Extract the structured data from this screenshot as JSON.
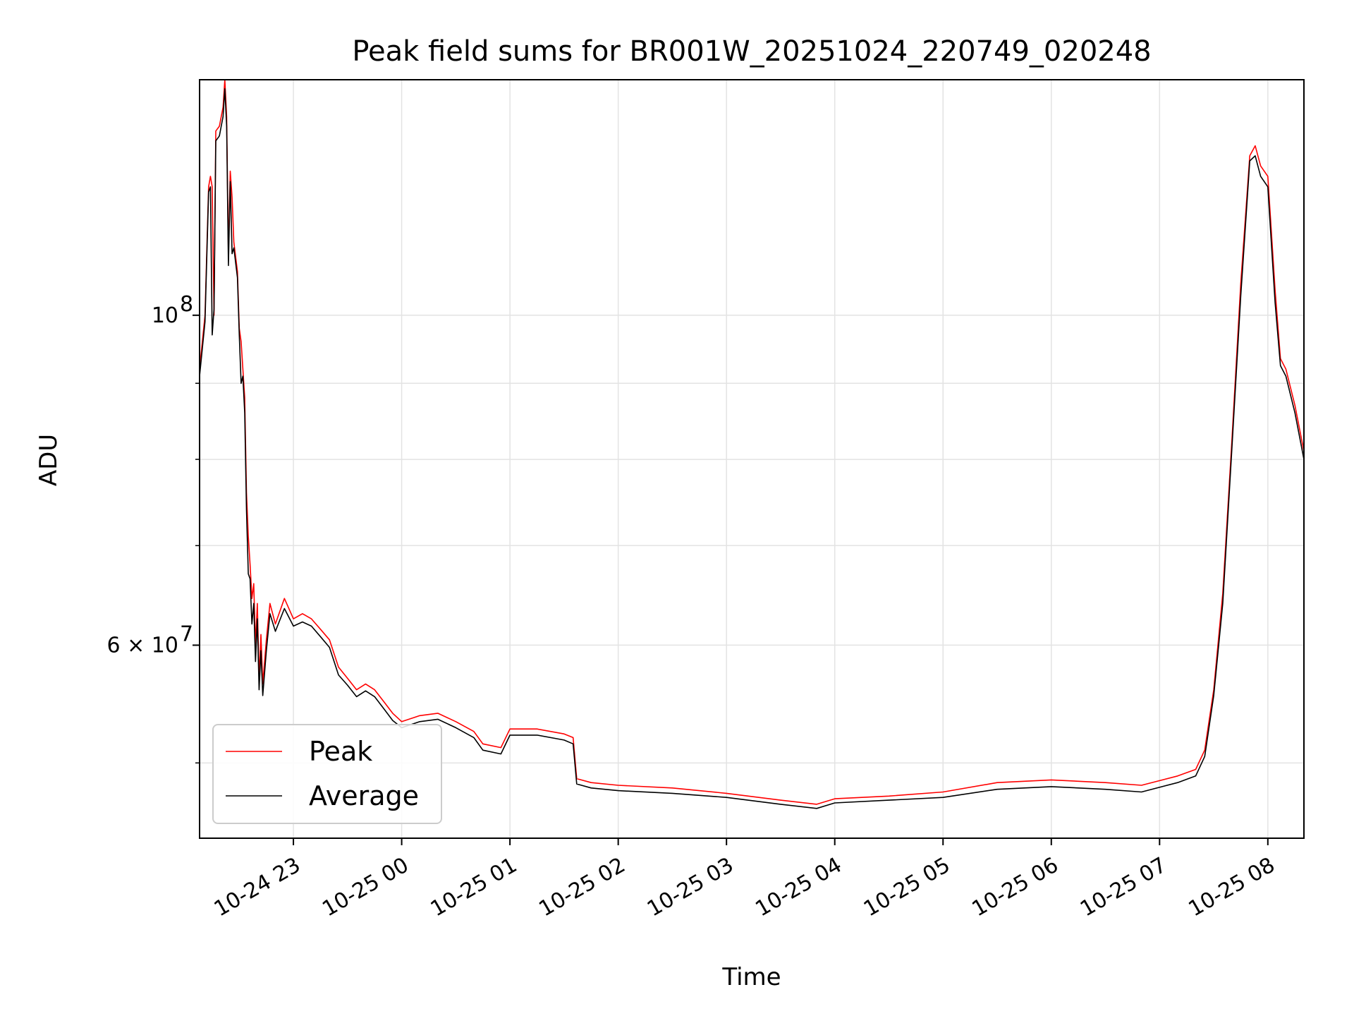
{
  "chart_data": {
    "type": "line",
    "title": "Peak field sums for BR001W_20251024_220749_020248",
    "xlabel": "Time",
    "ylabel": "ADU",
    "yscale": "log",
    "grid": true,
    "legend_position": "lower-left",
    "xlim": [
      "2025-10-24T22:08:00",
      "2025-10-25T08:20:00"
    ],
    "ylim": [
      44500000,
      144000000
    ],
    "x_ticks": [
      {
        "t": "2025-10-24T23:00:00",
        "label": "10-24 23"
      },
      {
        "t": "2025-10-25T00:00:00",
        "label": "10-25 00"
      },
      {
        "t": "2025-10-25T01:00:00",
        "label": "10-25 01"
      },
      {
        "t": "2025-10-25T02:00:00",
        "label": "10-25 02"
      },
      {
        "t": "2025-10-25T03:00:00",
        "label": "10-25 03"
      },
      {
        "t": "2025-10-25T04:00:00",
        "label": "10-25 04"
      },
      {
        "t": "2025-10-25T05:00:00",
        "label": "10-25 05"
      },
      {
        "t": "2025-10-25T06:00:00",
        "label": "10-25 06"
      },
      {
        "t": "2025-10-25T07:00:00",
        "label": "10-25 07"
      },
      {
        "t": "2025-10-25T08:00:00",
        "label": "10-25 08"
      }
    ],
    "y_major_ticks": [
      {
        "v": 100000000,
        "label_base": "10",
        "label_exp": "8"
      },
      {
        "v": 60000000,
        "label_base": "6 × 10",
        "label_exp": "7"
      }
    ],
    "y_minor_ticks": [
      50000000,
      70000000,
      80000000,
      90000000
    ],
    "series": [
      {
        "name": "Peak",
        "color": "#ff0000",
        "points": [
          [
            "2025-10-24T22:08:00",
            92000000
          ],
          [
            "2025-10-24T22:11:00",
            100000000
          ],
          [
            "2025-10-24T22:13:00",
            122000000
          ],
          [
            "2025-10-24T22:14:00",
            124000000
          ],
          [
            "2025-10-24T22:15:00",
            122000000
          ],
          [
            "2025-10-24T22:16:00",
            100000000
          ],
          [
            "2025-10-24T22:17:00",
            133000000
          ],
          [
            "2025-10-24T22:19:00",
            134000000
          ],
          [
            "2025-10-24T22:20:00",
            136000000
          ],
          [
            "2025-10-24T22:21:00",
            138000000
          ],
          [
            "2025-10-24T22:22:00",
            144000000
          ],
          [
            "2025-10-24T22:23:00",
            136000000
          ],
          [
            "2025-10-24T22:24:00",
            110000000
          ],
          [
            "2025-10-24T22:25:00",
            125000000
          ],
          [
            "2025-10-24T22:26:00",
            120000000
          ],
          [
            "2025-10-24T22:27:00",
            112000000
          ],
          [
            "2025-10-24T22:29:00",
            107000000
          ],
          [
            "2025-10-24T22:30:00",
            98000000
          ],
          [
            "2025-10-24T22:31:00",
            96000000
          ],
          [
            "2025-10-24T22:32:00",
            92000000
          ],
          [
            "2025-10-24T22:33:00",
            88000000
          ],
          [
            "2025-10-24T22:34:00",
            76000000
          ],
          [
            "2025-10-24T22:35:00",
            71000000
          ],
          [
            "2025-10-24T22:36:00",
            68000000
          ],
          [
            "2025-10-24T22:37:00",
            64500000
          ],
          [
            "2025-10-24T22:38:00",
            66000000
          ],
          [
            "2025-10-24T22:39:00",
            60000000
          ],
          [
            "2025-10-24T22:40:00",
            64000000
          ],
          [
            "2025-10-24T22:41:00",
            57000000
          ],
          [
            "2025-10-24T22:42:00",
            61000000
          ],
          [
            "2025-10-24T22:43:00",
            56500000
          ],
          [
            "2025-10-24T22:45:00",
            60500000
          ],
          [
            "2025-10-24T22:47:00",
            64000000
          ],
          [
            "2025-10-24T22:50:00",
            62000000
          ],
          [
            "2025-10-24T22:55:00",
            64500000
          ],
          [
            "2025-10-24T23:00:00",
            62500000
          ],
          [
            "2025-10-24T23:05:00",
            63000000
          ],
          [
            "2025-10-24T23:10:00",
            62500000
          ],
          [
            "2025-10-24T23:15:00",
            61500000
          ],
          [
            "2025-10-24T23:20:00",
            60500000
          ],
          [
            "2025-10-24T23:25:00",
            58000000
          ],
          [
            "2025-10-24T23:30:00",
            57000000
          ],
          [
            "2025-10-24T23:35:00",
            56000000
          ],
          [
            "2025-10-24T23:40:00",
            56500000
          ],
          [
            "2025-10-24T23:45:00",
            56000000
          ],
          [
            "2025-10-24T23:50:00",
            55000000
          ],
          [
            "2025-10-24T23:55:00",
            54000000
          ],
          [
            "2025-10-25T00:00:00",
            53300000
          ],
          [
            "2025-10-25T00:10:00",
            53800000
          ],
          [
            "2025-10-25T00:20:00",
            54000000
          ],
          [
            "2025-10-25T00:30:00",
            53300000
          ],
          [
            "2025-10-25T00:40:00",
            52500000
          ],
          [
            "2025-10-25T00:45:00",
            51500000
          ],
          [
            "2025-10-25T00:55:00",
            51200000
          ],
          [
            "2025-10-25T01:00:00",
            52700000
          ],
          [
            "2025-10-25T01:15:00",
            52700000
          ],
          [
            "2025-10-25T01:30:00",
            52300000
          ],
          [
            "2025-10-25T01:35:00",
            52000000
          ],
          [
            "2025-10-25T01:37:00",
            48800000
          ],
          [
            "2025-10-25T01:45:00",
            48500000
          ],
          [
            "2025-10-25T02:00:00",
            48300000
          ],
          [
            "2025-10-25T02:30:00",
            48100000
          ],
          [
            "2025-10-25T03:00:00",
            47700000
          ],
          [
            "2025-10-25T03:30:00",
            47200000
          ],
          [
            "2025-10-25T03:50:00",
            46900000
          ],
          [
            "2025-10-25T04:00:00",
            47300000
          ],
          [
            "2025-10-25T04:30:00",
            47500000
          ],
          [
            "2025-10-25T05:00:00",
            47800000
          ],
          [
            "2025-10-25T05:30:00",
            48500000
          ],
          [
            "2025-10-25T06:00:00",
            48700000
          ],
          [
            "2025-10-25T06:30:00",
            48500000
          ],
          [
            "2025-10-25T06:50:00",
            48300000
          ],
          [
            "2025-10-25T07:10:00",
            49000000
          ],
          [
            "2025-10-25T07:20:00",
            49500000
          ],
          [
            "2025-10-25T07:25:00",
            51000000
          ],
          [
            "2025-10-25T07:30:00",
            56000000
          ],
          [
            "2025-10-25T07:35:00",
            65000000
          ],
          [
            "2025-10-25T07:40:00",
            82000000
          ],
          [
            "2025-10-25T07:45:00",
            105000000
          ],
          [
            "2025-10-25T07:50:00",
            128000000
          ],
          [
            "2025-10-25T07:53:00",
            130000000
          ],
          [
            "2025-10-25T07:56:00",
            126000000
          ],
          [
            "2025-10-25T08:00:00",
            124000000
          ],
          [
            "2025-10-25T08:04:00",
            104000000
          ],
          [
            "2025-10-25T08:07:00",
            93500000
          ],
          [
            "2025-10-25T08:10:00",
            92000000
          ],
          [
            "2025-10-25T08:15:00",
            87000000
          ],
          [
            "2025-10-25T08:20:00",
            81000000
          ]
        ]
      },
      {
        "name": "Average",
        "color": "#000000",
        "points": [
          [
            "2025-10-24T22:08:00",
            91000000
          ],
          [
            "2025-10-24T22:11:00",
            99000000
          ],
          [
            "2025-10-24T22:13:00",
            121000000
          ],
          [
            "2025-10-24T22:14:00",
            122000000
          ],
          [
            "2025-10-24T22:15:00",
            97000000
          ],
          [
            "2025-10-24T22:16:00",
            101000000
          ],
          [
            "2025-10-24T22:17:00",
            131000000
          ],
          [
            "2025-10-24T22:19:00",
            132000000
          ],
          [
            "2025-10-24T22:20:00",
            134000000
          ],
          [
            "2025-10-24T22:21:00",
            136000000
          ],
          [
            "2025-10-24T22:22:00",
            142000000
          ],
          [
            "2025-10-24T22:23:00",
            134000000
          ],
          [
            "2025-10-24T22:24:00",
            108000000
          ],
          [
            "2025-10-24T22:25:00",
            123000000
          ],
          [
            "2025-10-24T22:26:00",
            110000000
          ],
          [
            "2025-10-24T22:27:00",
            111000000
          ],
          [
            "2025-10-24T22:29:00",
            106000000
          ],
          [
            "2025-10-24T22:30:00",
            97000000
          ],
          [
            "2025-10-24T22:31:00",
            90000000
          ],
          [
            "2025-10-24T22:32:00",
            91000000
          ],
          [
            "2025-10-24T22:33:00",
            86000000
          ],
          [
            "2025-10-24T22:34:00",
            74000000
          ],
          [
            "2025-10-24T22:35:00",
            67000000
          ],
          [
            "2025-10-24T22:36:00",
            66500000
          ],
          [
            "2025-10-24T22:37:00",
            62000000
          ],
          [
            "2025-10-24T22:38:00",
            64000000
          ],
          [
            "2025-10-24T22:39:00",
            58500000
          ],
          [
            "2025-10-24T22:40:00",
            62500000
          ],
          [
            "2025-10-24T22:41:00",
            56000000
          ],
          [
            "2025-10-24T22:42:00",
            59500000
          ],
          [
            "2025-10-24T22:43:00",
            55500000
          ],
          [
            "2025-10-24T22:45:00",
            59500000
          ],
          [
            "2025-10-24T22:47:00",
            63000000
          ],
          [
            "2025-10-24T22:50:00",
            61300000
          ],
          [
            "2025-10-24T22:55:00",
            63500000
          ],
          [
            "2025-10-24T23:00:00",
            61800000
          ],
          [
            "2025-10-24T23:05:00",
            62200000
          ],
          [
            "2025-10-24T23:10:00",
            61800000
          ],
          [
            "2025-10-24T23:15:00",
            60800000
          ],
          [
            "2025-10-24T23:20:00",
            59800000
          ],
          [
            "2025-10-24T23:25:00",
            57300000
          ],
          [
            "2025-10-24T23:30:00",
            56400000
          ],
          [
            "2025-10-24T23:35:00",
            55400000
          ],
          [
            "2025-10-24T23:40:00",
            55900000
          ],
          [
            "2025-10-24T23:45:00",
            55400000
          ],
          [
            "2025-10-24T23:50:00",
            54400000
          ],
          [
            "2025-10-24T23:55:00",
            53400000
          ],
          [
            "2025-10-25T00:00:00",
            52800000
          ],
          [
            "2025-10-25T00:10:00",
            53300000
          ],
          [
            "2025-10-25T00:20:00",
            53500000
          ],
          [
            "2025-10-25T00:30:00",
            52800000
          ],
          [
            "2025-10-25T00:40:00",
            52000000
          ],
          [
            "2025-10-25T00:45:00",
            51000000
          ],
          [
            "2025-10-25T00:55:00",
            50700000
          ],
          [
            "2025-10-25T01:00:00",
            52200000
          ],
          [
            "2025-10-25T01:15:00",
            52200000
          ],
          [
            "2025-10-25T01:30:00",
            51800000
          ],
          [
            "2025-10-25T01:35:00",
            51500000
          ],
          [
            "2025-10-25T01:37:00",
            48400000
          ],
          [
            "2025-10-25T01:45:00",
            48100000
          ],
          [
            "2025-10-25T02:00:00",
            47900000
          ],
          [
            "2025-10-25T02:30:00",
            47700000
          ],
          [
            "2025-10-25T03:00:00",
            47400000
          ],
          [
            "2025-10-25T03:30:00",
            46900000
          ],
          [
            "2025-10-25T03:50:00",
            46600000
          ],
          [
            "2025-10-25T04:00:00",
            47000000
          ],
          [
            "2025-10-25T04:30:00",
            47200000
          ],
          [
            "2025-10-25T05:00:00",
            47400000
          ],
          [
            "2025-10-25T05:30:00",
            48000000
          ],
          [
            "2025-10-25T06:00:00",
            48200000
          ],
          [
            "2025-10-25T06:30:00",
            48000000
          ],
          [
            "2025-10-25T06:50:00",
            47800000
          ],
          [
            "2025-10-25T07:10:00",
            48500000
          ],
          [
            "2025-10-25T07:20:00",
            49000000
          ],
          [
            "2025-10-25T07:25:00",
            50500000
          ],
          [
            "2025-10-25T07:30:00",
            55500000
          ],
          [
            "2025-10-25T07:35:00",
            64000000
          ],
          [
            "2025-10-25T07:40:00",
            81000000
          ],
          [
            "2025-10-25T07:45:00",
            103000000
          ],
          [
            "2025-10-25T07:50:00",
            127000000
          ],
          [
            "2025-10-25T07:53:00",
            128000000
          ],
          [
            "2025-10-25T07:56:00",
            124000000
          ],
          [
            "2025-10-25T08:00:00",
            122000000
          ],
          [
            "2025-10-25T08:04:00",
            102000000
          ],
          [
            "2025-10-25T08:07:00",
            92500000
          ],
          [
            "2025-10-25T08:10:00",
            91000000
          ],
          [
            "2025-10-25T08:15:00",
            86000000
          ],
          [
            "2025-10-25T08:20:00",
            80000000
          ]
        ]
      }
    ]
  }
}
